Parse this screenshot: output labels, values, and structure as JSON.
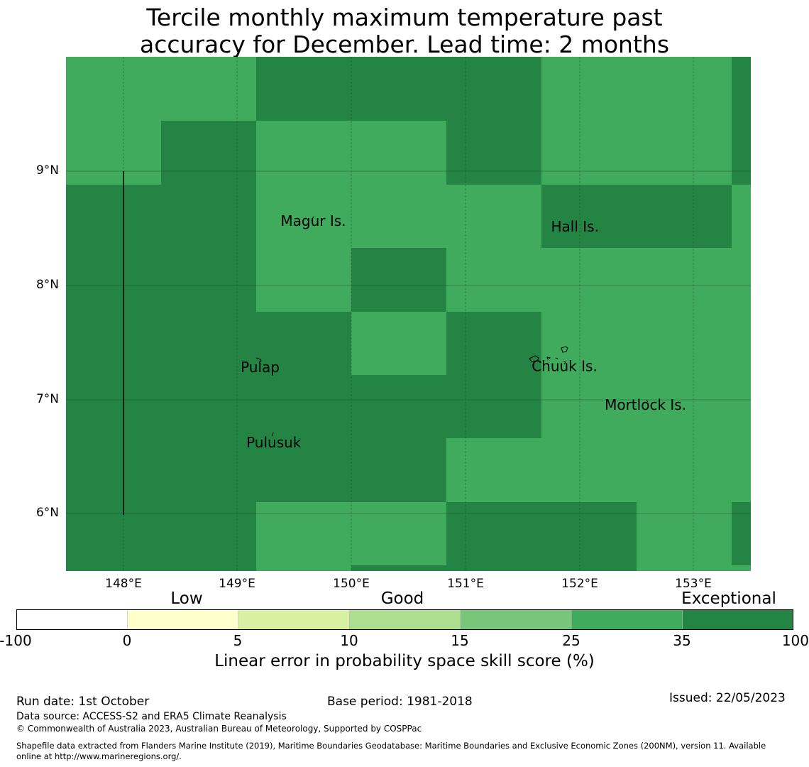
{
  "title": {
    "line1": "Tercile monthly maximum temperature past",
    "line2": "accuracy for December. Lead time: 2 months"
  },
  "map": {
    "lon_ticks": [
      "148°E",
      "149°E",
      "150°E",
      "151°E",
      "152°E",
      "153°E"
    ],
    "lat_ticks": [
      "9°N",
      "8°N",
      "7°N",
      "6°N"
    ],
    "place_labels": [
      {
        "name": "Magur Is.",
        "lon": 149.38,
        "lat": 8.52
      },
      {
        "name": "Hall Is.",
        "lon": 151.75,
        "lat": 8.47
      },
      {
        "name": "Pulap",
        "lon": 149.03,
        "lat": 7.24
      },
      {
        "name": "Chuuk Is.",
        "lon": 151.58,
        "lat": 7.25
      },
      {
        "name": "Mortlock Is.",
        "lon": 152.22,
        "lat": 6.91
      },
      {
        "name": "Pulusuk",
        "lon": 149.08,
        "lat": 6.58
      }
    ],
    "extent": {
      "lon_min": 147.5,
      "lon_max": 153.5,
      "lat_min": 5.5,
      "lat_max": 10.0
    },
    "category_colors": {
      "exceptional": "#238443",
      "good_high": "#41ab5d"
    }
  },
  "colorbar": {
    "categories": [
      "Low",
      "Good",
      "Exceptional"
    ],
    "ticks": [
      "-100",
      "0",
      "5",
      "10",
      "15",
      "25",
      "35",
      "100"
    ],
    "colors": [
      "#ffffff",
      "#ffffcc",
      "#d9f0a3",
      "#addd8e",
      "#78c679",
      "#41ab5d",
      "#238443"
    ],
    "label": "Linear error in probability space skill score (%)"
  },
  "footer": {
    "run_date": "Run date: 1st October",
    "base_period": "Base period: 1981-2018",
    "issued": "Issued: 22/05/2023",
    "data_source": "Data source: ACCESS-S2 and ERA5 Climate Reanalysis",
    "copyright": "© Commonwealth of Australia 2023, Australian Bureau of Meteorology, Supported by COSPPac",
    "shapefile_line1": "Shapefile data extracted from Flanders Marine Institute (2019), Maritime Boundaries Geodatabase: Maritime Boundaries and Exclusive Economic Zones (200NM), version 11. Available",
    "shapefile_line2": "online at http://www.marineregions.org/."
  }
}
